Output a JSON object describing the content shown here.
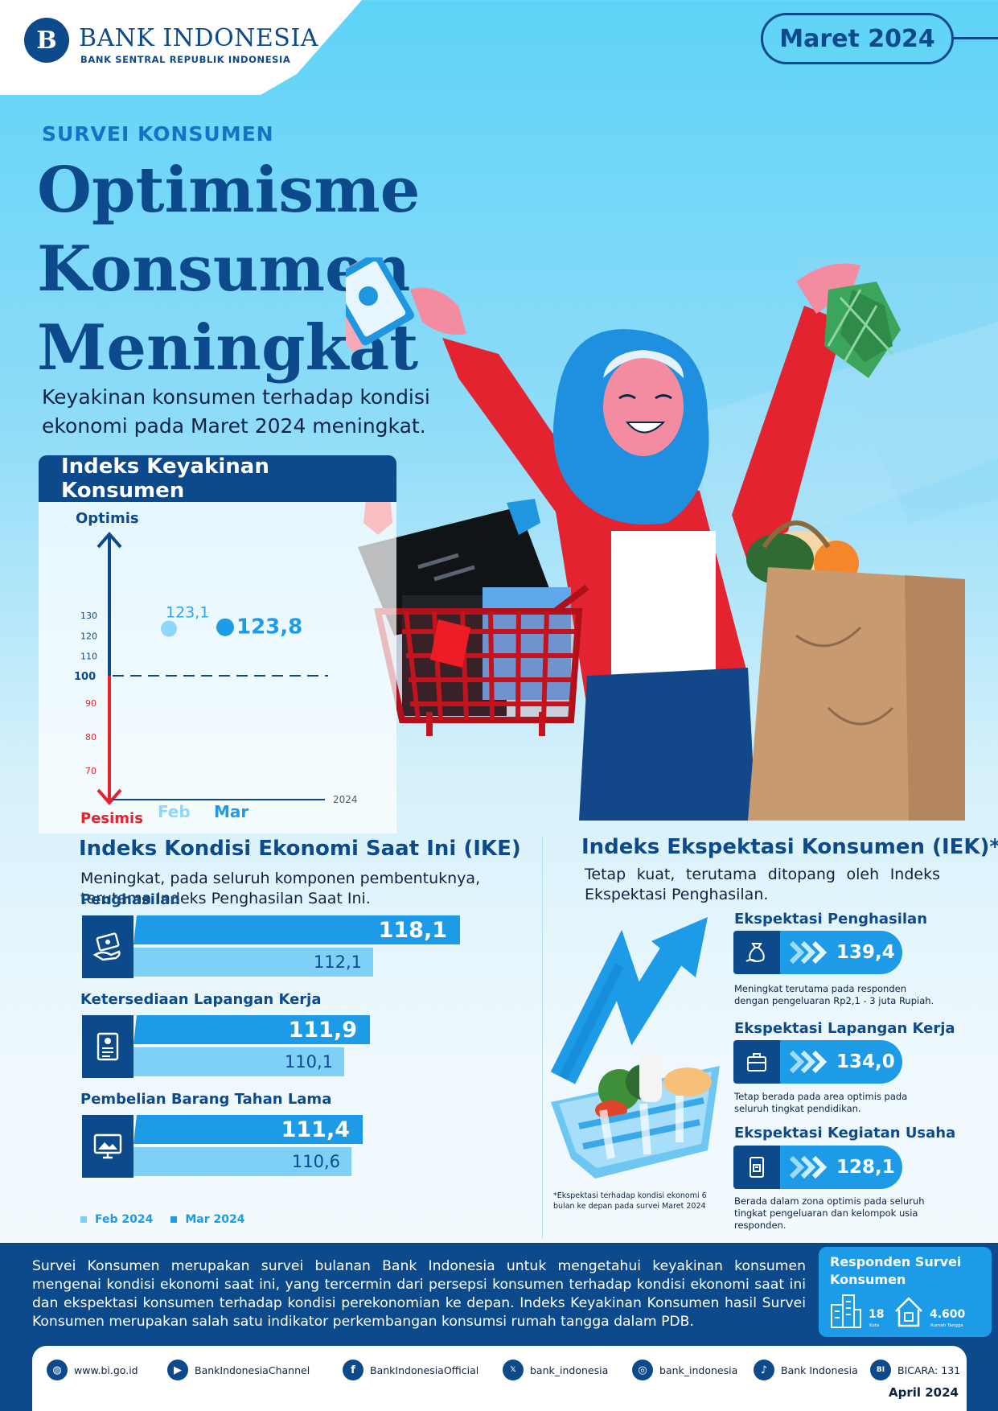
{
  "header": {
    "logo_mark": "B",
    "logo_name": "BANK INDONESIA",
    "logo_sub": "BANK SENTRAL REPUBLIK INDONESIA",
    "period": "Maret 2024"
  },
  "hero": {
    "kicker": "SURVEI KONSUMEN",
    "title_line1": "Optimisme Konsumen",
    "title_line2": "Meningkat",
    "lead": "Keyakinan konsumen terhadap kondisi ekonomi pada Maret 2024 meningkat."
  },
  "ikk": {
    "title": "Indeks Keyakinan Konsumen",
    "optimis_label": "Optimis",
    "pesimis_label": "Pesimis",
    "year_label": "2024",
    "threshold_label": "100",
    "ticks_upper": [
      "130",
      "120",
      "110"
    ],
    "ticks_lower": [
      "90",
      "80",
      "70"
    ],
    "points": [
      {
        "month": "Feb",
        "value": 123.1,
        "label": "123,1"
      },
      {
        "month": "Mar",
        "value": 123.8,
        "label": "123,8"
      }
    ]
  },
  "ike": {
    "title": "Indeks Kondisi Ekonomi Saat Ini (IKE)",
    "desc": "Meningkat, pada seluruh komponen pembentuknya, terutama Indeks Penghasilan Saat Ini.",
    "items": [
      {
        "label": "Penghasilan",
        "icon": "money-hand-icon",
        "mar": 118.1,
        "mar_label": "118,1",
        "feb": 112.1,
        "feb_label": "112,1"
      },
      {
        "label": "Ketersediaan Lapangan Kerja",
        "icon": "job-document-icon",
        "mar": 111.9,
        "mar_label": "111,9",
        "feb": 110.1,
        "feb_label": "110,1"
      },
      {
        "label": "Pembelian Barang Tahan Lama",
        "icon": "monitor-icon",
        "mar": 111.4,
        "mar_label": "111,4",
        "feb": 110.6,
        "feb_label": "110,6"
      }
    ],
    "legend": {
      "feb": "Feb 2024",
      "mar": "Mar 2024",
      "feb_color": "#7fd0f7",
      "mar_color": "#1e9be6"
    }
  },
  "iek": {
    "title": "Indeks Ekspektasi Konsumen (IEK)*",
    "desc": "Tetap kuat, terutama ditopang oleh Indeks Ekspektasi Penghasilan.",
    "items": [
      {
        "label": "Ekspektasi Penghasilan",
        "icon": "money-bag-icon",
        "value": "139,4",
        "note": "Meningkat terutama pada responden dengan pengeluaran Rp2,1 - 3 juta Rupiah."
      },
      {
        "label": "Ekspektasi Lapangan Kerja",
        "icon": "briefcase-icon",
        "value": "134,0",
        "note": "Tetap berada pada area optimis pada seluruh tingkat pendidikan."
      },
      {
        "label": "Ekspektasi Kegiatan Usaha",
        "icon": "shop-icon",
        "value": "128,1",
        "note": "Berada dalam zona optimis pada seluruh tingkat pengeluaran dan kelompok usia responden."
      }
    ],
    "footnote": "*Ekspektasi terhadap kondisi ekonomi 6 bulan ke depan pada survei Maret 2024"
  },
  "footer": {
    "text": "Survei Konsumen merupakan survei bulanan Bank Indonesia untuk mengetahui keyakinan konsumen mengenai kondisi ekonomi saat ini, yang tercermin dari persepsi konsumen terhadap kondisi ekonomi saat ini dan ekspektasi konsumen terhadap kondisi perekonomian ke depan. Indeks Keyakinan Konsumen hasil Survei Konsumen merupakan salah satu indikator perkembangan konsumsi rumah tangga dalam PDB.",
    "resp_title": "Responden Survei Konsumen",
    "cities": "18",
    "cities_unit": "Kota",
    "households": "4.600",
    "households_unit": "Rumah Tangga",
    "release": "April 2024"
  },
  "social": [
    {
      "name": "web",
      "icon": "globe-icon",
      "glyph": "◍",
      "text": "www.bi.go.id"
    },
    {
      "name": "youtube",
      "icon": "play-icon",
      "glyph": "▶",
      "text": "BankIndonesiaChannel"
    },
    {
      "name": "facebook",
      "icon": "facebook-icon",
      "glyph": "f",
      "text": "BankIndonesiaOfficial"
    },
    {
      "name": "x",
      "icon": "x-icon",
      "glyph": "𝕏",
      "text": "bank_indonesia"
    },
    {
      "name": "instagram",
      "icon": "instagram-icon",
      "glyph": "◎",
      "text": "bank_indonesia"
    },
    {
      "name": "tiktok",
      "icon": "tiktok-icon",
      "glyph": "♪",
      "text": "Bank Indonesia"
    },
    {
      "name": "bicara",
      "icon": "bicara-icon",
      "glyph": "BI",
      "text": "BICARA: 131"
    }
  ],
  "colors": {
    "navy": "#0d4a8c",
    "blue": "#1e9be6",
    "light_blue": "#7fd0f7",
    "red": "#e32330"
  }
}
